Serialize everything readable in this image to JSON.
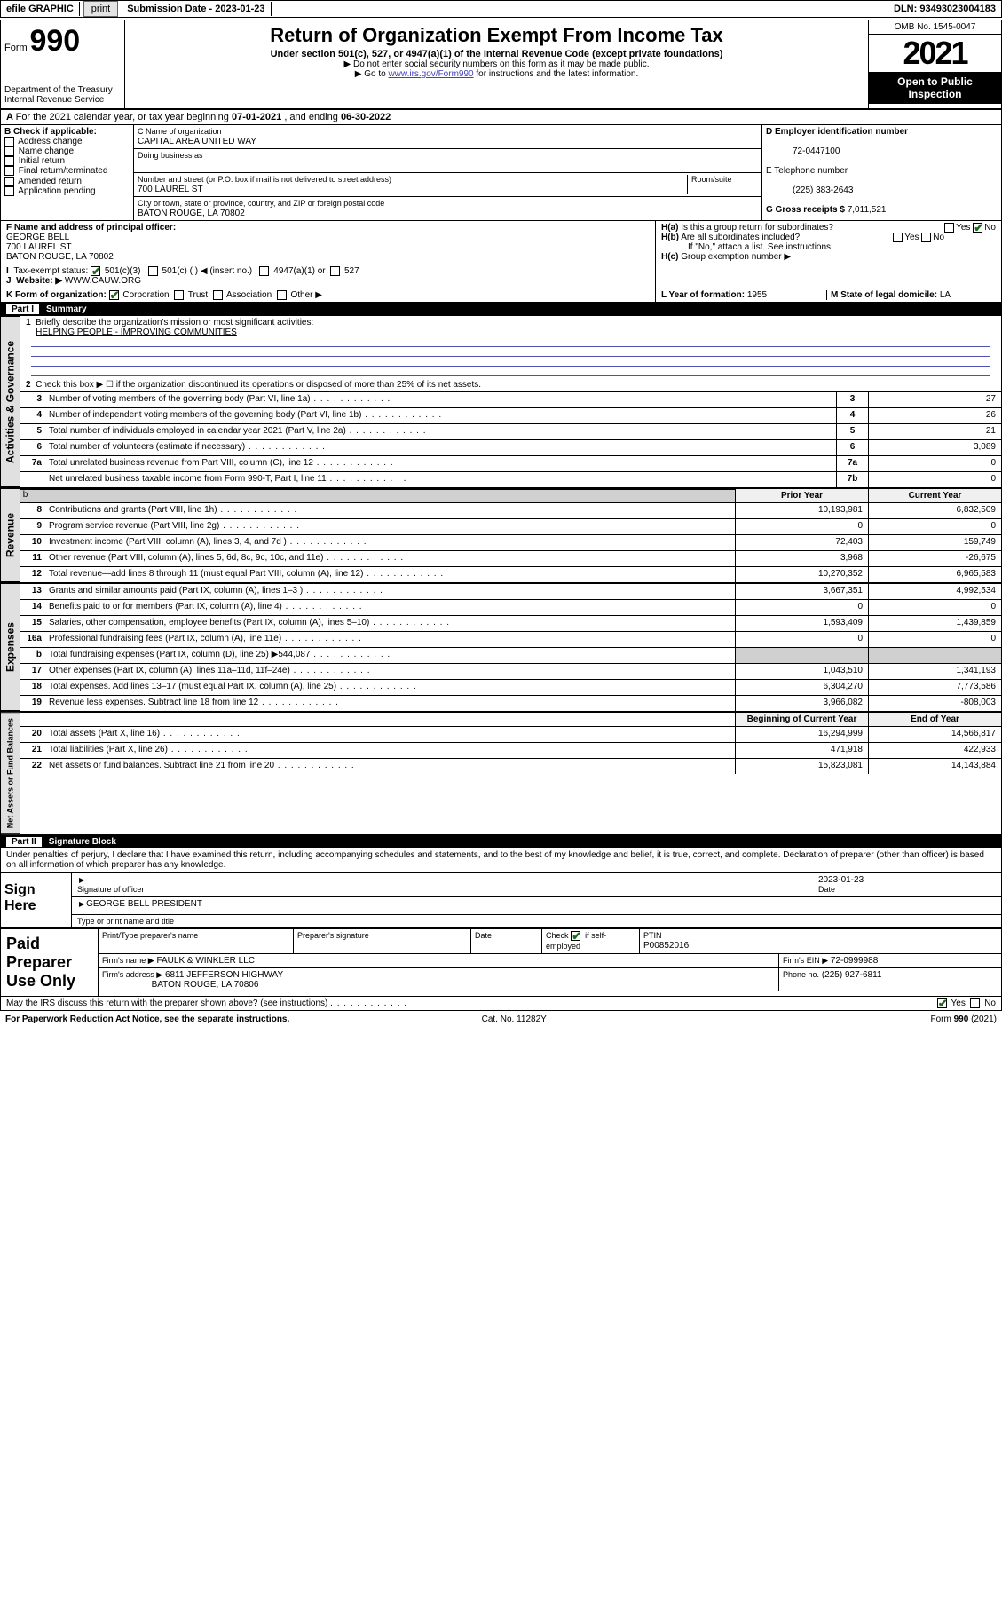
{
  "topbar": {
    "efile": "efile GRAPHIC",
    "print": "print",
    "subdate_label": "Submission Date - 2023-01-23",
    "dln": "DLN: 93493023004183"
  },
  "header": {
    "form_label": "Form",
    "form_no": "990",
    "title": "Return of Organization Exempt From Income Tax",
    "subtitle": "Under section 501(c), 527, or 4947(a)(1) of the Internal Revenue Code (except private foundations)",
    "note1": "▶ Do not enter social security numbers on this form as it may be made public.",
    "note2_pre": "▶ Go to ",
    "note2_link": "www.irs.gov/Form990",
    "note2_post": " for instructions and the latest information.",
    "dept": "Department of the Treasury",
    "irs": "Internal Revenue Service",
    "omb": "OMB No. 1545-0047",
    "year": "2021",
    "open": "Open to Public Inspection"
  },
  "period": {
    "text_a": "For the 2021 calendar year, or tax year beginning ",
    "begin": "07-01-2021",
    "mid": " , and ending ",
    "end": "06-30-2022"
  },
  "boxB": {
    "label": "B Check if applicable:",
    "items": [
      "Address change",
      "Name change",
      "Initial return",
      "Final return/terminated",
      "Amended return",
      "Application pending"
    ]
  },
  "boxC": {
    "label": "C Name of organization",
    "name": "CAPITAL AREA UNITED WAY",
    "dba_label": "Doing business as",
    "addr_label": "Number and street (or P.O. box if mail is not delivered to street address)",
    "room": "Room/suite",
    "street": "700 LAUREL ST",
    "city_label": "City or town, state or province, country, and ZIP or foreign postal code",
    "city": "BATON ROUGE, LA  70802"
  },
  "boxD": {
    "label": "D Employer identification number",
    "val": "72-0447100"
  },
  "boxE": {
    "label": "E Telephone number",
    "val": "(225) 383-2643"
  },
  "boxG": {
    "label": "G Gross receipts $",
    "val": "7,011,521"
  },
  "boxF": {
    "label": "F  Name and address of principal officer:",
    "name": "GEORGE BELL",
    "street": "700 LAUREL ST",
    "city": "BATON ROUGE, LA  70802"
  },
  "boxH": {
    "a": "Is this a group return for subordinates?",
    "b": "Are all subordinates included?",
    "note": "If \"No,\" attach a list. See instructions.",
    "c": "Group exemption number ▶",
    "yes": "Yes",
    "no": "No"
  },
  "boxI": {
    "label": "Tax-exempt status:",
    "c3": "501(c)(3)",
    "c": "501(c) (  ) ◀ (insert no.)",
    "a1": "4947(a)(1) or",
    "s527": "527"
  },
  "boxJ": {
    "label": "Website: ▶",
    "val": "WWW.CAUW.ORG"
  },
  "boxK": {
    "label": "K Form of organization:",
    "corp": "Corporation",
    "trust": "Trust",
    "assoc": "Association",
    "other": "Other ▶"
  },
  "boxL": {
    "label": "L Year of formation:",
    "val": "1955"
  },
  "boxM": {
    "label": "M State of legal domicile:",
    "val": "LA"
  },
  "part1": {
    "label": "Part I",
    "title": "Summary"
  },
  "summary": {
    "l1_label": "Briefly describe the organization's mission or most significant activities:",
    "l1_val": "HELPING PEOPLE - IMPROVING COMMUNITIES",
    "l2": "Check this box ▶ ☐  if the organization discontinued its operations or disposed of more than 25% of its net assets.",
    "rows_small": [
      {
        "n": "3",
        "t": "Number of voting members of the governing body (Part VI, line 1a)",
        "b": "3",
        "v": "27"
      },
      {
        "n": "4",
        "t": "Number of independent voting members of the governing body (Part VI, line 1b)",
        "b": "4",
        "v": "26"
      },
      {
        "n": "5",
        "t": "Total number of individuals employed in calendar year 2021 (Part V, line 2a)",
        "b": "5",
        "v": "21"
      },
      {
        "n": "6",
        "t": "Total number of volunteers (estimate if necessary)",
        "b": "6",
        "v": "3,089"
      },
      {
        "n": "7a",
        "t": "Total unrelated business revenue from Part VIII, column (C), line 12",
        "b": "7a",
        "v": "0"
      },
      {
        "n": "",
        "t": "Net unrelated business taxable income from Form 990-T, Part I, line 11",
        "b": "7b",
        "v": "0"
      }
    ],
    "col_prior": "Prior Year",
    "col_current": "Current Year",
    "col_boy": "Beginning of Current Year",
    "col_eoy": "End of Year"
  },
  "revenue": [
    {
      "n": "8",
      "t": "Contributions and grants (Part VIII, line 1h)",
      "p": "10,193,981",
      "c": "6,832,509"
    },
    {
      "n": "9",
      "t": "Program service revenue (Part VIII, line 2g)",
      "p": "0",
      "c": "0"
    },
    {
      "n": "10",
      "t": "Investment income (Part VIII, column (A), lines 3, 4, and 7d )",
      "p": "72,403",
      "c": "159,749"
    },
    {
      "n": "11",
      "t": "Other revenue (Part VIII, column (A), lines 5, 6d, 8c, 9c, 10c, and 11e)",
      "p": "3,968",
      "c": "-26,675"
    },
    {
      "n": "12",
      "t": "Total revenue—add lines 8 through 11 (must equal Part VIII, column (A), line 12)",
      "p": "10,270,352",
      "c": "6,965,583"
    }
  ],
  "expenses": [
    {
      "n": "13",
      "t": "Grants and similar amounts paid (Part IX, column (A), lines 1–3 )",
      "p": "3,667,351",
      "c": "4,992,534"
    },
    {
      "n": "14",
      "t": "Benefits paid to or for members (Part IX, column (A), line 4)",
      "p": "0",
      "c": "0"
    },
    {
      "n": "15",
      "t": "Salaries, other compensation, employee benefits (Part IX, column (A), lines 5–10)",
      "p": "1,593,409",
      "c": "1,439,859"
    },
    {
      "n": "16a",
      "t": "Professional fundraising fees (Part IX, column (A), line 11e)",
      "p": "0",
      "c": "0"
    },
    {
      "n": "b",
      "t": "Total fundraising expenses (Part IX, column (D), line 25) ▶544,087",
      "p": "shade",
      "c": "shade"
    },
    {
      "n": "17",
      "t": "Other expenses (Part IX, column (A), lines 11a–11d, 11f–24e)",
      "p": "1,043,510",
      "c": "1,341,193"
    },
    {
      "n": "18",
      "t": "Total expenses. Add lines 13–17 (must equal Part IX, column (A), line 25)",
      "p": "6,304,270",
      "c": "7,773,586"
    },
    {
      "n": "19",
      "t": "Revenue less expenses. Subtract line 18 from line 12",
      "p": "3,966,082",
      "c": "-808,003"
    }
  ],
  "netassets": [
    {
      "n": "20",
      "t": "Total assets (Part X, line 16)",
      "p": "16,294,999",
      "c": "14,566,817"
    },
    {
      "n": "21",
      "t": "Total liabilities (Part X, line 26)",
      "p": "471,918",
      "c": "422,933"
    },
    {
      "n": "22",
      "t": "Net assets or fund balances. Subtract line 21 from line 20",
      "p": "15,823,081",
      "c": "14,143,884"
    }
  ],
  "part2": {
    "label": "Part II",
    "title": "Signature Block"
  },
  "sig": {
    "perjury": "Under penalties of perjury, I declare that I have examined this return, including accompanying schedules and statements, and to the best of my knowledge and belief, it is true, correct, and complete. Declaration of preparer (other than officer) is based on all information of which preparer has any knowledge.",
    "sign_here": "Sign Here",
    "sig_officer": "Signature of officer",
    "date_label": "Date",
    "date_val": "2023-01-23",
    "name": "GEORGE BELL  PRESIDENT",
    "name_label": "Type or print name and title"
  },
  "prep": {
    "label": "Paid Preparer Use Only",
    "h1": "Print/Type preparer's name",
    "h2": "Preparer's signature",
    "h3": "Date",
    "h4_a": "Check",
    "h4_b": "if self-employed",
    "ptin_l": "PTIN",
    "ptin": "P00852016",
    "firm_l": "Firm's name  ▶",
    "firm": "FAULK & WINKLER LLC",
    "ein_l": "Firm's EIN ▶",
    "ein": "72-0999988",
    "addr_l": "Firm's address ▶",
    "addr1": "6811 JEFFERSON HIGHWAY",
    "addr2": "BATON ROUGE, LA  70806",
    "phone_l": "Phone no.",
    "phone": "(225) 927-6811"
  },
  "footer": {
    "discuss": "May the IRS discuss this return with the preparer shown above? (see instructions)",
    "yes": "Yes",
    "no": "No",
    "pra": "For Paperwork Reduction Act Notice, see the separate instructions.",
    "cat": "Cat. No. 11282Y",
    "form": "Form 990 (2021)"
  },
  "tabs": {
    "t1": "Activities & Governance",
    "t2": "Revenue",
    "t3": "Expenses",
    "t4": "Net Assets or Fund Balances"
  },
  "colors": {
    "link": "#4040c0",
    "checked": "#1a6b1a",
    "shade": "#d0d0d0"
  }
}
